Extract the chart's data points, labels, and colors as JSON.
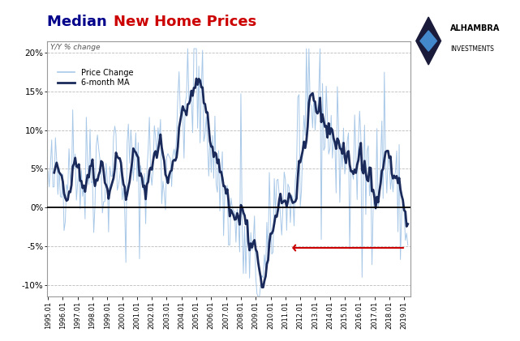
{
  "title_median": "Median ",
  "title_colored": "New Home Prices",
  "subtitle": "Y/Y % change",
  "legend_price_change": "Price Change",
  "legend_ma": "6-month MA",
  "color_price_change": "#a8c8e8",
  "color_ma": "#1a2a5a",
  "color_zero_line": "#000000",
  "color_arrow": "#cc0000",
  "title_color_median": "#00008B",
  "title_color_nhp": "#cc0000",
  "background_color": "#ffffff",
  "grid_color": "#bbbbbb",
  "yticks": [
    -0.1,
    -0.05,
    0.0,
    0.05,
    0.1,
    0.15,
    0.2
  ],
  "ytick_labels": [
    "-10%",
    "-5%",
    "0%",
    "5%",
    "10%",
    "15%",
    "20%"
  ],
  "xtick_vals": [
    1995.0,
    1996.0,
    1997.0,
    1998.0,
    1999.0,
    2000.0,
    2001.0,
    2002.0,
    2003.0,
    2004.0,
    2005.0,
    2006.0,
    2007.0,
    2008.0,
    2009.0,
    2010.0,
    2011.0,
    2012.0,
    2013.0,
    2014.0,
    2015.0,
    2016.0,
    2017.0,
    2018.0,
    2019.0
  ],
  "xtick_labels": [
    "1995.01",
    "1996.01",
    "1997.01",
    "1998.01",
    "1999.01",
    "2000.01",
    "2001.01",
    "2002.01",
    "2003.01",
    "2004.01",
    "2005.01",
    "2006.01",
    "2007.01",
    "2008.01",
    "2009.01",
    "2010.01",
    "2011.01",
    "2012.01",
    "2013.01",
    "2014.01",
    "2015.01",
    "2016.01",
    "2017.01",
    "2018.01",
    "2019.01"
  ]
}
